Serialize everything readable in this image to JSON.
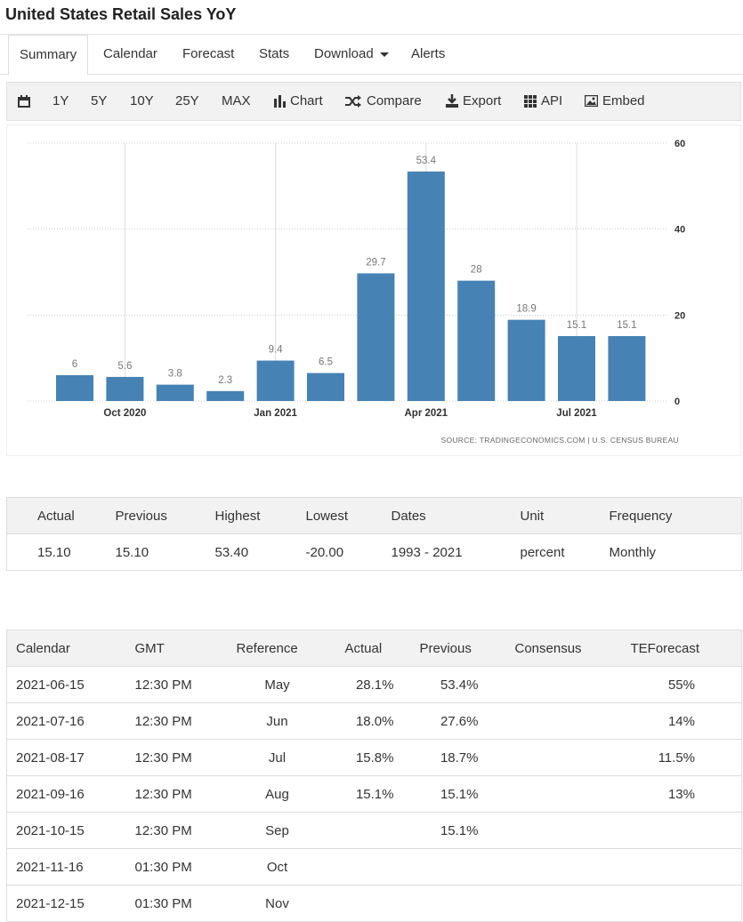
{
  "header": {
    "title": "United States Retail Sales YoY"
  },
  "tabs": [
    "Summary",
    "Calendar",
    "Forecast",
    "Stats",
    "Download",
    "Alerts"
  ],
  "toolbar": [
    "1Y",
    "5Y",
    "10Y",
    "25Y",
    "MAX",
    "Chart",
    "Compare",
    "Export",
    "API",
    "Embed"
  ],
  "chart_data": {
    "type": "bar",
    "categories": [
      null,
      "Oct 2020",
      null,
      null,
      "Jan 2021",
      null,
      null,
      "Apr 2021",
      null,
      null,
      "Jul 2021",
      null
    ],
    "values": [
      6,
      5.6,
      3.8,
      2.3,
      9.4,
      6.5,
      29.7,
      53.4,
      28,
      18.9,
      15.1,
      15.1
    ],
    "color": "#4682b4",
    "ylim": [
      0,
      60
    ],
    "yticks": [
      0,
      20,
      40,
      60
    ],
    "grid": true,
    "source": "SOURCE: TRADINGECONOMICS.COM | U.S. CENSUS BUREAU"
  },
  "summary": {
    "columns": [
      "Actual",
      "Previous",
      "Highest",
      "Lowest",
      "Dates",
      "Unit",
      "Frequency"
    ],
    "rows": [
      [
        "15.10",
        "15.10",
        "53.40",
        "-20.00",
        "1993 - 2021",
        "percent",
        "Monthly"
      ]
    ]
  },
  "calendar": {
    "columns": [
      "Calendar",
      "GMT",
      "Reference",
      "Actual",
      "Previous",
      "Consensus",
      "TEForecast"
    ],
    "rows": [
      [
        "2021-06-15",
        "12:30 PM",
        "May",
        "28.1%",
        "53.4%",
        null,
        "55%"
      ],
      [
        "2021-07-16",
        "12:30 PM",
        "Jun",
        "18.0%",
        "27.6%",
        null,
        "14%"
      ],
      [
        "2021-08-17",
        "12:30 PM",
        "Jul",
        "15.8%",
        "18.7%",
        null,
        "11.5%"
      ],
      [
        "2021-09-16",
        "12:30 PM",
        "Aug",
        "15.1%",
        "15.1%",
        null,
        "13%"
      ],
      [
        "2021-10-15",
        "12:30 PM",
        "Sep",
        null,
        "15.1%",
        null,
        null
      ],
      [
        "2021-11-16",
        "01:30 PM",
        "Oct",
        null,
        null,
        null,
        null
      ],
      [
        "2021-12-15",
        "01:30 PM",
        "Nov",
        null,
        null,
        null,
        null
      ]
    ]
  }
}
